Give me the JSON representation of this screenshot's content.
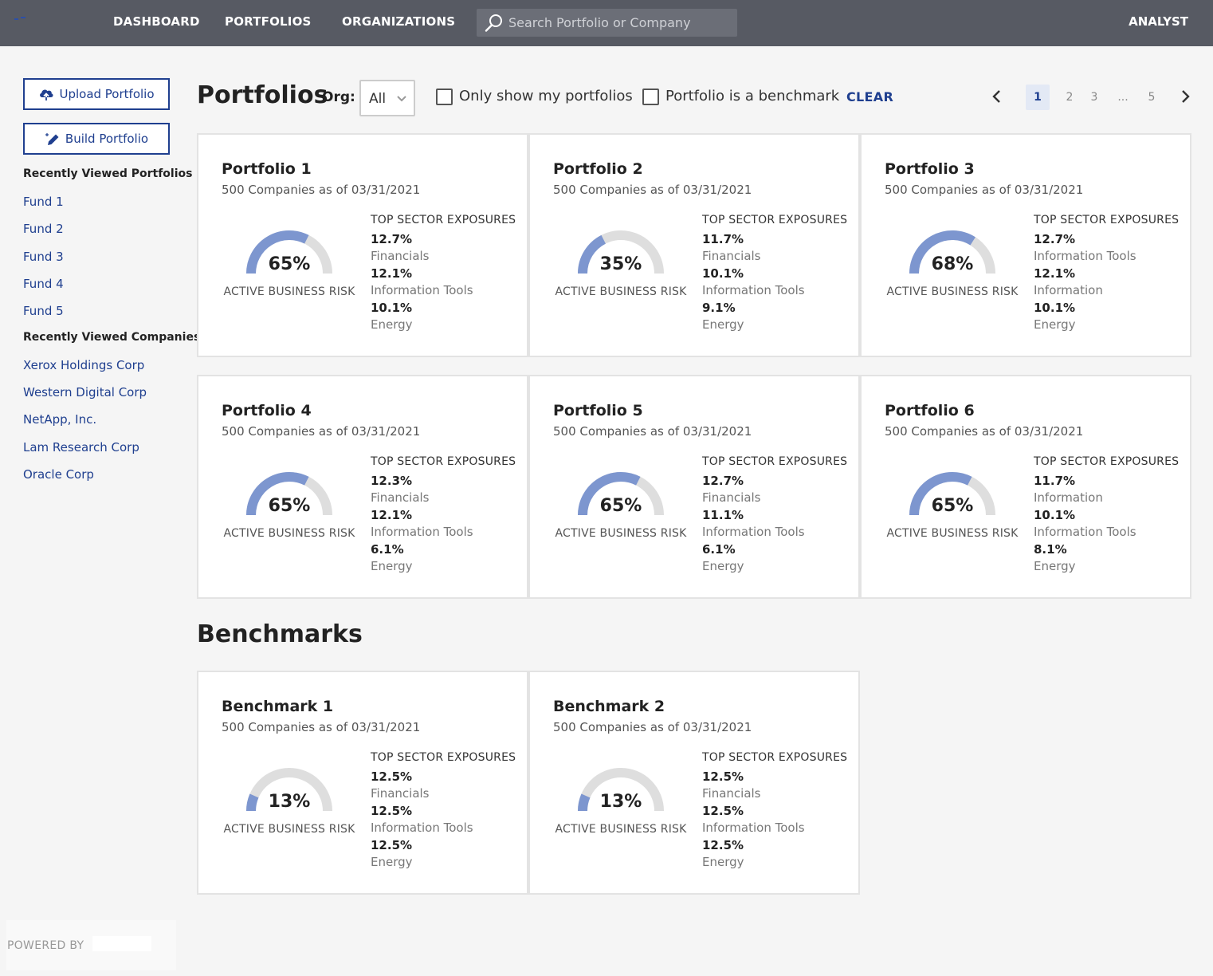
{
  "nav": {
    "logo_icon": "logo-dash-icon",
    "links": [
      "DASHBOARD",
      "PORTFOLIOS",
      "ORGANIZATIONS"
    ],
    "search_placeholder": "Search Portfolio or Company",
    "user_role": "ANALYST"
  },
  "sidebar": {
    "upload_label": "Upload Portfolio",
    "build_label": "Build Portfolio",
    "recent_portfolios_heading": "Recently Viewed Portfolios",
    "recent_portfolios": [
      "Fund 1",
      "Fund 2",
      "Fund 3",
      "Fund 4",
      "Fund 5"
    ],
    "recent_companies_heading": "Recently Viewed Companies",
    "recent_companies": [
      "Xerox Holdings Corp",
      "Western Digital Corp",
      "NetApp, Inc.",
      "Lam Research Corp",
      "Oracle Corp"
    ],
    "powered_by": "POWERED BY"
  },
  "filters": {
    "page_title": "Portfolios",
    "org_label": "Org:",
    "org_value": "All",
    "only_mine_label": "Only show my portfolios",
    "only_mine_checked": false,
    "benchmark_label": "Portfolio is a benchmark",
    "benchmark_checked": false,
    "clear_label": "CLEAR"
  },
  "pager": {
    "items": [
      "1",
      "2",
      "3",
      "...",
      "5"
    ],
    "active": "1"
  },
  "colors": {
    "topbar": "#575a63",
    "accent": "#1f3f8f",
    "gauge_fill": "#7d96cf",
    "gauge_track": "#dedede"
  },
  "sector_heading": "TOP SECTOR EXPOSURES",
  "risk_label": "ACTIVE BUSINESS RISK",
  "portfolios": [
    {
      "title": "Portfolio 1",
      "subtitle": "500 Companies as of 03/31/2021",
      "risk": 65,
      "risk_text": "65%",
      "sectors": [
        {
          "pct": "12.7%",
          "name": "Financials"
        },
        {
          "pct": "12.1%",
          "name": "Information Tools"
        },
        {
          "pct": "10.1%",
          "name": "Energy"
        }
      ]
    },
    {
      "title": "Portfolio 2",
      "subtitle": "500 Companies as of 03/31/2021",
      "risk": 35,
      "risk_text": "35%",
      "sectors": [
        {
          "pct": "11.7%",
          "name": "Financials"
        },
        {
          "pct": "10.1%",
          "name": "Information Tools"
        },
        {
          "pct": "9.1%",
          "name": "Energy"
        }
      ]
    },
    {
      "title": "Portfolio 3",
      "subtitle": "500 Companies as of 03/31/2021",
      "risk": 68,
      "risk_text": "68%",
      "sectors": [
        {
          "pct": "12.7%",
          "name": "Information Tools"
        },
        {
          "pct": "12.1%",
          "name": "Information"
        },
        {
          "pct": "10.1%",
          "name": "Energy"
        }
      ]
    },
    {
      "title": "Portfolio 4",
      "subtitle": "500 Companies as of 03/31/2021",
      "risk": 65,
      "risk_text": "65%",
      "sectors": [
        {
          "pct": "12.3%",
          "name": "Financials"
        },
        {
          "pct": "12.1%",
          "name": "Information Tools"
        },
        {
          "pct": "6.1%",
          "name": "Energy"
        }
      ]
    },
    {
      "title": "Portfolio 5",
      "subtitle": "500 Companies as of 03/31/2021",
      "risk": 65,
      "risk_text": "65%",
      "sectors": [
        {
          "pct": "12.7%",
          "name": "Financials"
        },
        {
          "pct": "11.1%",
          "name": "Information Tools"
        },
        {
          "pct": "6.1%",
          "name": "Energy"
        }
      ]
    },
    {
      "title": "Portfolio 6",
      "subtitle": "500 Companies as of 03/31/2021",
      "risk": 65,
      "risk_text": "65%",
      "sectors": [
        {
          "pct": "11.7%",
          "name": "Information"
        },
        {
          "pct": "10.1%",
          "name": "Information Tools"
        },
        {
          "pct": "8.1%",
          "name": "Energy"
        }
      ]
    }
  ],
  "benchmarks_title": "Benchmarks",
  "benchmarks": [
    {
      "title": "Benchmark 1",
      "subtitle": "500 Companies as of 03/31/2021",
      "risk": 13,
      "risk_text": "13%",
      "sectors": [
        {
          "pct": "12.5%",
          "name": "Financials"
        },
        {
          "pct": "12.5%",
          "name": "Information Tools"
        },
        {
          "pct": "12.5%",
          "name": "Energy"
        }
      ]
    },
    {
      "title": "Benchmark 2",
      "subtitle": "500 Companies as of 03/31/2021",
      "risk": 13,
      "risk_text": "13%",
      "sectors": [
        {
          "pct": "12.5%",
          "name": "Financials"
        },
        {
          "pct": "12.5%",
          "name": "Information Tools"
        },
        {
          "pct": "12.5%",
          "name": "Energy"
        }
      ]
    }
  ]
}
